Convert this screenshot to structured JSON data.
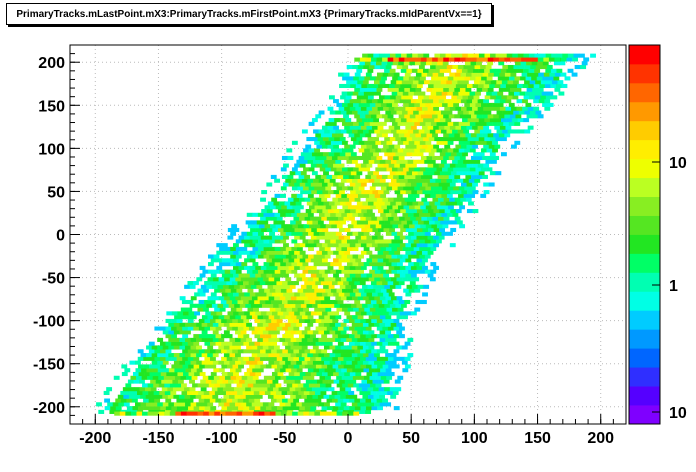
{
  "chart_data": {
    "type": "heatmap",
    "title": "PrimaryTracks.mLastPoint.mX3:PrimaryTracks.mFirstPoint.mX3 {PrimaryTracks.mIdParentVx==1}",
    "xlabel": "",
    "ylabel": "",
    "xlim": [
      -220,
      220
    ],
    "ylim": [
      -220,
      220
    ],
    "x_ticks": [
      -200,
      -150,
      -100,
      -50,
      0,
      50,
      100,
      150,
      200
    ],
    "y_ticks": [
      -200,
      -150,
      -100,
      -50,
      0,
      50,
      100,
      150,
      200
    ],
    "x_tick_labels": [
      "-200",
      "-150",
      "-100",
      "-50",
      "0",
      "50",
      "100",
      "150",
      "200"
    ],
    "y_tick_labels": [
      "-200",
      "-150",
      "-100",
      "-50",
      "0",
      "50",
      "100",
      "150",
      "200"
    ],
    "z_scale": "log",
    "z_range": [
      1,
      50
    ],
    "colorbar_tick_labels": [
      "10",
      "1",
      "10"
    ],
    "grid": true,
    "band": {
      "description_points": [
        {
          "y": -205,
          "x_min": -190,
          "x_max": 25,
          "x_peak": -95
        },
        {
          "y": -150,
          "x_min": -165,
          "x_max": 35,
          "x_peak": -80
        },
        {
          "y": -100,
          "x_min": -140,
          "x_max": 40,
          "x_peak": -55
        },
        {
          "y": -50,
          "x_min": -110,
          "x_max": 55,
          "x_peak": -30
        },
        {
          "y": 0,
          "x_min": -85,
          "x_max": 75,
          "x_peak": -5
        },
        {
          "y": 50,
          "x_min": -55,
          "x_max": 100,
          "x_peak": 15
        },
        {
          "y": 100,
          "x_min": -35,
          "x_max": 120,
          "x_peak": 40
        },
        {
          "y": 150,
          "x_min": -5,
          "x_max": 150,
          "x_peak": 65
        },
        {
          "y": 205,
          "x_min": 10,
          "x_max": 180,
          "x_peak": 85
        }
      ],
      "bottom_edge_peak": {
        "y": -205,
        "x_from": -140,
        "x_to": -60,
        "level": "max"
      },
      "top_edge_peak": {
        "y": 204,
        "x_from": 30,
        "x_to": 150,
        "level": "max"
      }
    },
    "colors": {
      "palette": [
        "#7f00ff",
        "#5500ff",
        "#2f2fff",
        "#0066ff",
        "#0099ff",
        "#00ccff",
        "#00ffe5",
        "#00ffb2",
        "#00ff66",
        "#22e622",
        "#55e622",
        "#88ee22",
        "#bbff22",
        "#eeff00",
        "#ffee00",
        "#ffcc00",
        "#ff9900",
        "#ff6600",
        "#ff3300",
        "#ff0000"
      ]
    }
  }
}
